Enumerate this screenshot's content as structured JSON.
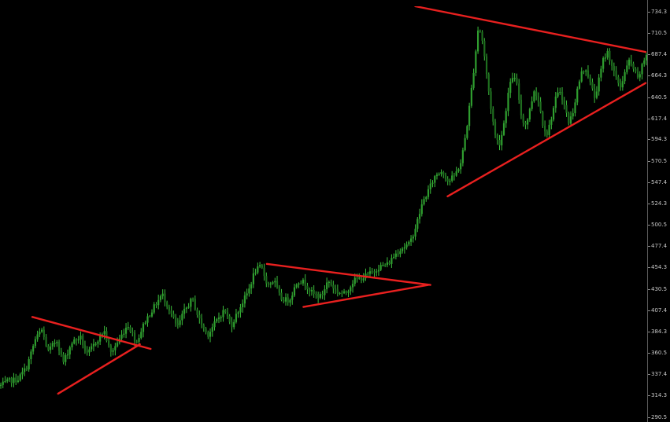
{
  "chart_data": {
    "type": "candlestick",
    "title": "",
    "xlabel": "",
    "ylabel": "",
    "ylim": [
      285,
      740
    ],
    "y_ticks": [
      "734.3",
      "710.5",
      "687.4",
      "664.3",
      "640.5",
      "617.4",
      "594.3",
      "570.5",
      "547.4",
      "524.3",
      "500.5",
      "477.4",
      "454.3",
      "430.5",
      "407.4",
      "384.3",
      "360.5",
      "337.4",
      "314.3",
      "290.5"
    ],
    "y_tick_values": [
      734.3,
      710.5,
      687.4,
      664.3,
      640.5,
      617.4,
      594.3,
      570.5,
      547.4,
      524.3,
      500.5,
      477.4,
      454.3,
      430.5,
      407.4,
      384.3,
      360.5,
      337.4,
      314.3,
      290.5
    ],
    "x_range": [
      0,
      300
    ],
    "grid": false,
    "colors": {
      "background": "#000000",
      "bull": "#2f9e2f",
      "bear": "#1f6e1f",
      "wick": "#3cbf3c",
      "trendline": "#e8201f",
      "scale_text": "#c8c8c8",
      "scale_border": "#5a5a5a"
    },
    "price_path": [
      [
        0,
        325
      ],
      [
        4,
        330
      ],
      [
        8,
        332
      ],
      [
        12,
        345
      ],
      [
        16,
        375
      ],
      [
        19,
        386
      ],
      [
        22,
        362
      ],
      [
        26,
        375
      ],
      [
        29,
        350
      ],
      [
        33,
        372
      ],
      [
        37,
        378
      ],
      [
        40,
        358
      ],
      [
        44,
        372
      ],
      [
        48,
        385
      ],
      [
        51,
        360
      ],
      [
        55,
        375
      ],
      [
        59,
        392
      ],
      [
        63,
        372
      ],
      [
        67,
        395
      ],
      [
        71,
        410
      ],
      [
        75,
        425
      ],
      [
        78,
        410
      ],
      [
        82,
        388
      ],
      [
        85,
        405
      ],
      [
        89,
        420
      ],
      [
        92,
        398
      ],
      [
        96,
        380
      ],
      [
        100,
        395
      ],
      [
        104,
        408
      ],
      [
        107,
        390
      ],
      [
        111,
        410
      ],
      [
        115,
        428
      ],
      [
        118,
        450
      ],
      [
        121,
        455
      ],
      [
        124,
        435
      ],
      [
        127,
        440
      ],
      [
        130,
        420
      ],
      [
        134,
        418
      ],
      [
        138,
        440
      ],
      [
        141,
        438
      ],
      [
        145,
        425
      ],
      [
        149,
        422
      ],
      [
        152,
        440
      ],
      [
        156,
        428
      ],
      [
        160,
        425
      ],
      [
        164,
        440
      ],
      [
        168,
        443
      ],
      [
        172,
        448
      ],
      [
        176,
        455
      ],
      [
        180,
        458
      ],
      [
        183,
        468
      ],
      [
        186,
        475
      ],
      [
        190,
        480
      ],
      [
        193,
        500
      ],
      [
        196,
        525
      ],
      [
        199,
        540
      ],
      [
        202,
        555
      ],
      [
        205,
        560
      ],
      [
        208,
        548
      ],
      [
        211,
        555
      ],
      [
        214,
        570
      ],
      [
        217,
        615
      ],
      [
        220,
        675
      ],
      [
        222,
        720
      ],
      [
        224,
        700
      ],
      [
        226,
        660
      ],
      [
        228,
        625
      ],
      [
        230,
        595
      ],
      [
        232,
        590
      ],
      [
        234,
        615
      ],
      [
        236,
        648
      ],
      [
        238,
        665
      ],
      [
        240,
        652
      ],
      [
        242,
        618
      ],
      [
        244,
        610
      ],
      [
        246,
        628
      ],
      [
        248,
        650
      ],
      [
        250,
        635
      ],
      [
        252,
        610
      ],
      [
        254,
        600
      ],
      [
        256,
        620
      ],
      [
        258,
        640
      ],
      [
        260,
        648
      ],
      [
        262,
        630
      ],
      [
        264,
        612
      ],
      [
        266,
        626
      ],
      [
        268,
        650
      ],
      [
        270,
        668
      ],
      [
        272,
        672
      ],
      [
        274,
        655
      ],
      [
        276,
        640
      ],
      [
        278,
        660
      ],
      [
        280,
        682
      ],
      [
        282,
        690
      ],
      [
        284,
        675
      ],
      [
        286,
        660
      ],
      [
        288,
        652
      ],
      [
        290,
        668
      ],
      [
        292,
        680
      ],
      [
        294,
        672
      ],
      [
        296,
        660
      ],
      [
        298,
        674
      ],
      [
        300,
        688
      ]
    ],
    "trendlines": [
      {
        "name": "triangle-1-upper",
        "from": [
          15,
          400
        ],
        "to": [
          70,
          365
        ]
      },
      {
        "name": "triangle-1-lower",
        "from": [
          27,
          316
        ],
        "to": [
          65,
          370
        ]
      },
      {
        "name": "triangle-2-upper",
        "from": [
          124,
          458
        ],
        "to": [
          200,
          435
        ]
      },
      {
        "name": "triangle-2-lower",
        "from": [
          141,
          411
        ],
        "to": [
          199,
          435
        ]
      },
      {
        "name": "triangle-3-upper",
        "from": [
          193,
          740
        ],
        "to": [
          300,
          690
        ]
      },
      {
        "name": "triangle-3-lower",
        "from": [
          208,
          532
        ],
        "to": [
          300,
          656
        ]
      }
    ]
  }
}
